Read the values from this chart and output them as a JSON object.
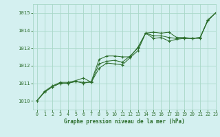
{
  "title": "Graphe pression niveau de la mer (hPa)",
  "bg_color": "#d4f0f0",
  "grid_color": "#a8d8c8",
  "line_color": "#2d6e2d",
  "marker_color": "#2d6e2d",
  "xlim": [
    -0.5,
    23
  ],
  "ylim": [
    1009.5,
    1015.5
  ],
  "xticks": [
    0,
    1,
    2,
    3,
    4,
    5,
    6,
    7,
    8,
    9,
    10,
    11,
    12,
    13,
    14,
    15,
    16,
    17,
    18,
    19,
    20,
    21,
    22,
    23
  ],
  "yticks": [
    1010,
    1011,
    1012,
    1013,
    1014,
    1015
  ],
  "series": [
    [
      1010.0,
      1010.5,
      1010.8,
      1011.0,
      1011.0,
      1011.1,
      1011.0,
      1011.1,
      1012.35,
      1012.55,
      1012.55,
      1012.5,
      1012.5,
      1013.05,
      1013.85,
      1013.9,
      1013.85,
      1013.9,
      1013.6,
      1013.6,
      1013.55,
      1013.6,
      1014.55,
      1015.0
    ],
    [
      1010.0,
      1010.5,
      1010.8,
      1011.0,
      1011.0,
      1011.1,
      1011.05,
      1011.05,
      1011.85,
      1012.15,
      1012.1,
      1012.05,
      1012.45,
      1012.85,
      1013.85,
      1013.55,
      1013.6,
      1013.4,
      1013.5,
      1013.55,
      1013.55,
      1013.55,
      1014.6,
      1015.0
    ],
    [
      1010.0,
      1010.55,
      1010.85,
      1011.05,
      1011.05,
      1011.15,
      1011.3,
      1011.05,
      1012.1,
      1012.25,
      1012.3,
      1012.2,
      1012.55,
      1013.0,
      1013.85,
      1013.7,
      1013.7,
      1013.6,
      1013.55,
      1013.55,
      1013.55,
      1013.6,
      1014.6,
      1015.0
    ]
  ]
}
